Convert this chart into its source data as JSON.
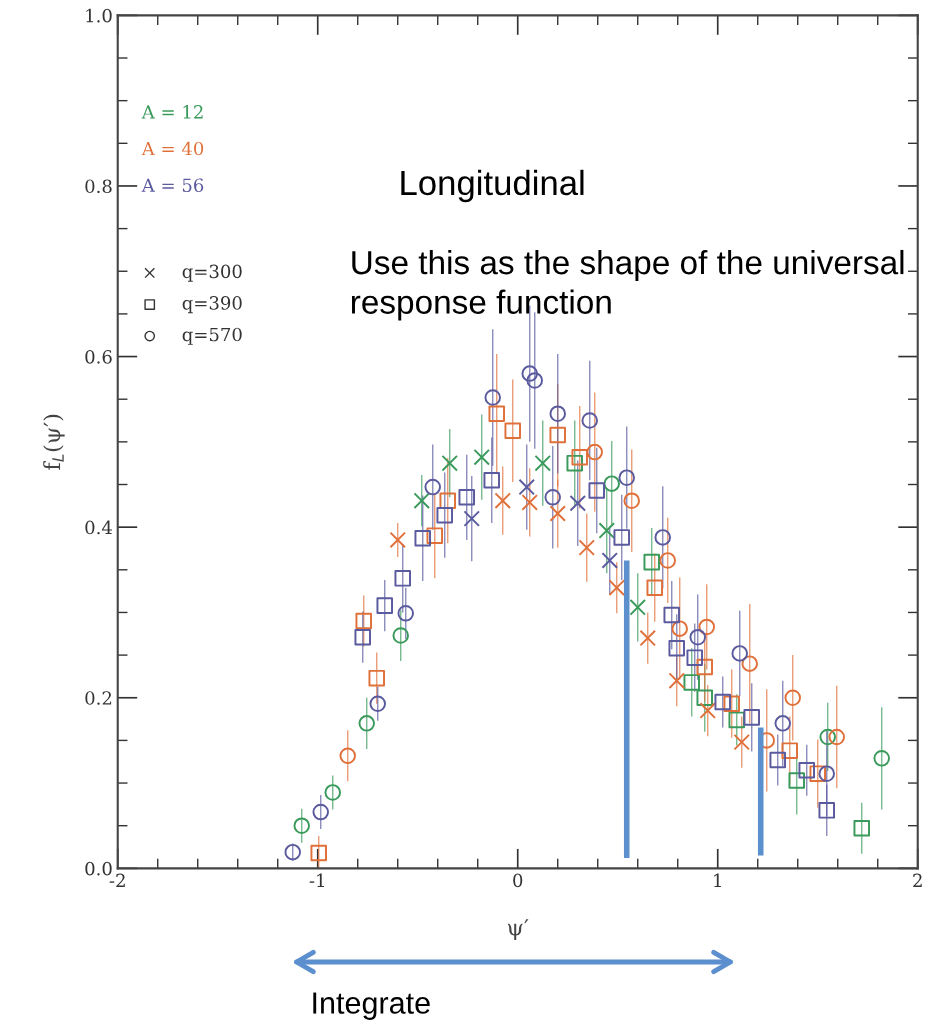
{
  "chart_data": {
    "type": "scatter",
    "xlabel": "ψ′",
    "ylabel": "f$_{L}$(ψ′)",
    "xlim": [
      -2,
      2
    ],
    "ylim": [
      0,
      1.0
    ],
    "xticks": [
      -2,
      -1,
      0,
      1,
      2
    ],
    "yticks": [
      {
        "value": 0,
        "label": "0.0"
      },
      {
        "value": 0.2,
        "label": "0.2"
      },
      {
        "value": 0.4,
        "label": "0.4"
      },
      {
        "value": 0.6,
        "label": "0.6"
      },
      {
        "value": 0.8,
        "label": "0.8"
      },
      {
        "value": 1.0,
        "label": "1.0"
      }
    ],
    "grid": false,
    "legend": false,
    "annotations": [
      "Longitudinal",
      "Use this as the shape of the universal response function",
      "Integrate",
      "A = 12",
      "A = 40",
      "A = 56",
      "q=300",
      "q=390",
      "q=570"
    ],
    "series": [
      {
        "marker": "cross",
        "color": "#3a9a5b",
        "x": [
          -0.48,
          -0.34,
          -0.18,
          0.125,
          0.445,
          0.6
        ],
        "values": [
          0.431,
          0.475,
          0.482,
          0.475,
          0.396,
          0.306
        ],
        "errors": [
          0.03,
          0.04,
          0.05,
          0.05,
          0.05,
          0.04
        ]
      },
      {
        "marker": "square",
        "color": "#3a9a5b",
        "x": [
          0.285,
          0.67,
          0.87,
          0.935,
          1.095,
          1.395,
          1.72
        ],
        "values": [
          0.475,
          0.359,
          0.218,
          0.2,
          0.174,
          0.103,
          0.047
        ],
        "errors": [
          0.05,
          0.04,
          0.04,
          0.04,
          0.03,
          0.04,
          0.03
        ]
      },
      {
        "marker": "circle",
        "color": "#3a9a5b",
        "x": [
          -1.08,
          -0.925,
          -0.755,
          -0.585,
          0.47,
          1.55,
          1.82
        ],
        "values": [
          0.05,
          0.089,
          0.17,
          0.273,
          0.451,
          0.154,
          0.129
        ],
        "errors": [
          0.02,
          0.02,
          0.03,
          0.03,
          0.05,
          0.04,
          0.06
        ]
      },
      {
        "marker": "cross",
        "color": "#e0703a",
        "x": [
          -0.6,
          -0.075,
          0.06,
          0.2,
          0.345,
          0.495,
          0.65,
          0.795,
          0.95,
          1.12
        ],
        "values": [
          0.385,
          0.431,
          0.429,
          0.416,
          0.376,
          0.329,
          0.27,
          0.22,
          0.185,
          0.148
        ],
        "errors": [
          0.02,
          0.04,
          0.04,
          0.04,
          0.04,
          0.03,
          0.03,
          0.03,
          0.03,
          0.03
        ]
      },
      {
        "marker": "square",
        "color": "#e0703a",
        "x": [
          -0.995,
          -0.77,
          -0.705,
          -0.415,
          -0.35,
          -0.105,
          -0.025,
          0.2,
          0.31,
          0.685,
          0.935,
          1.07,
          1.36,
          1.5
        ],
        "values": [
          0.018,
          0.29,
          0.223,
          0.39,
          0.431,
          0.533,
          0.513,
          0.508,
          0.482,
          0.329,
          0.236,
          0.193,
          0.138,
          0.111
        ],
        "errors": [
          0.02,
          0.03,
          0.03,
          0.05,
          0.05,
          0.07,
          0.06,
          0.06,
          0.06,
          0.04,
          0.04,
          0.04,
          0.04,
          0.04
        ]
      },
      {
        "marker": "circle",
        "color": "#e0703a",
        "x": [
          -0.85,
          0.385,
          0.57,
          0.75,
          0.81,
          0.945,
          1.16,
          1.245,
          1.375,
          1.595
        ],
        "values": [
          0.132,
          0.488,
          0.431,
          0.361,
          0.281,
          0.283,
          0.24,
          0.15,
          0.2,
          0.154
        ],
        "errors": [
          0.03,
          0.07,
          0.06,
          0.05,
          0.06,
          0.05,
          0.07,
          0.06,
          0.05,
          0.06
        ]
      },
      {
        "marker": "cross",
        "color": "#5a5a9e",
        "x": [
          -0.23,
          0.045,
          0.3,
          0.46
        ],
        "values": [
          0.41,
          0.447,
          0.428,
          0.361
        ],
        "errors": [
          0.05,
          0.05,
          0.05,
          0.04
        ]
      },
      {
        "marker": "square",
        "color": "#5a5a9e",
        "x": [
          -0.775,
          -0.665,
          -0.575,
          -0.475,
          -0.365,
          -0.255,
          -0.13,
          0.395,
          0.52,
          0.77,
          0.795,
          0.885,
          1.025,
          1.17,
          1.3,
          1.445,
          1.545
        ],
        "values": [
          0.271,
          0.308,
          0.34,
          0.387,
          0.414,
          0.435,
          0.455,
          0.443,
          0.388,
          0.297,
          0.258,
          0.247,
          0.195,
          0.177,
          0.127,
          0.115,
          0.068
        ],
        "errors": [
          0.03,
          0.03,
          0.04,
          0.05,
          0.05,
          0.05,
          0.05,
          0.05,
          0.05,
          0.04,
          0.04,
          0.04,
          0.03,
          0.04,
          0.03,
          0.03,
          0.03
        ]
      },
      {
        "marker": "circle",
        "color": "#5a5a9e",
        "x": [
          -1.125,
          -0.985,
          -0.7,
          -0.56,
          -0.425,
          -0.125,
          0.06,
          0.085,
          0.175,
          0.2,
          0.36,
          0.545,
          0.725,
          0.9,
          1.11,
          1.325,
          1.545
        ],
        "values": [
          0.019,
          0.066,
          0.193,
          0.299,
          0.447,
          0.552,
          0.58,
          0.572,
          0.435,
          0.533,
          0.525,
          0.458,
          0.388,
          0.271,
          0.252,
          0.17,
          0.111
        ],
        "errors": [
          0.01,
          0.02,
          0.02,
          0.03,
          0.05,
          0.08,
          0.08,
          0.08,
          0.06,
          0.07,
          0.07,
          0.06,
          0.06,
          0.05,
          0.05,
          0.05,
          0.05
        ]
      },
      {
        "type": "line",
        "color": "#5b8fcd",
        "x": [
          0.545,
          0.545
        ],
        "values": [
          0.012,
          0.361
        ]
      },
      {
        "type": "line",
        "color": "#5b8fcd",
        "x": [
          1.215,
          1.215
        ],
        "values": [
          0.015,
          0.165
        ]
      }
    ]
  }
}
